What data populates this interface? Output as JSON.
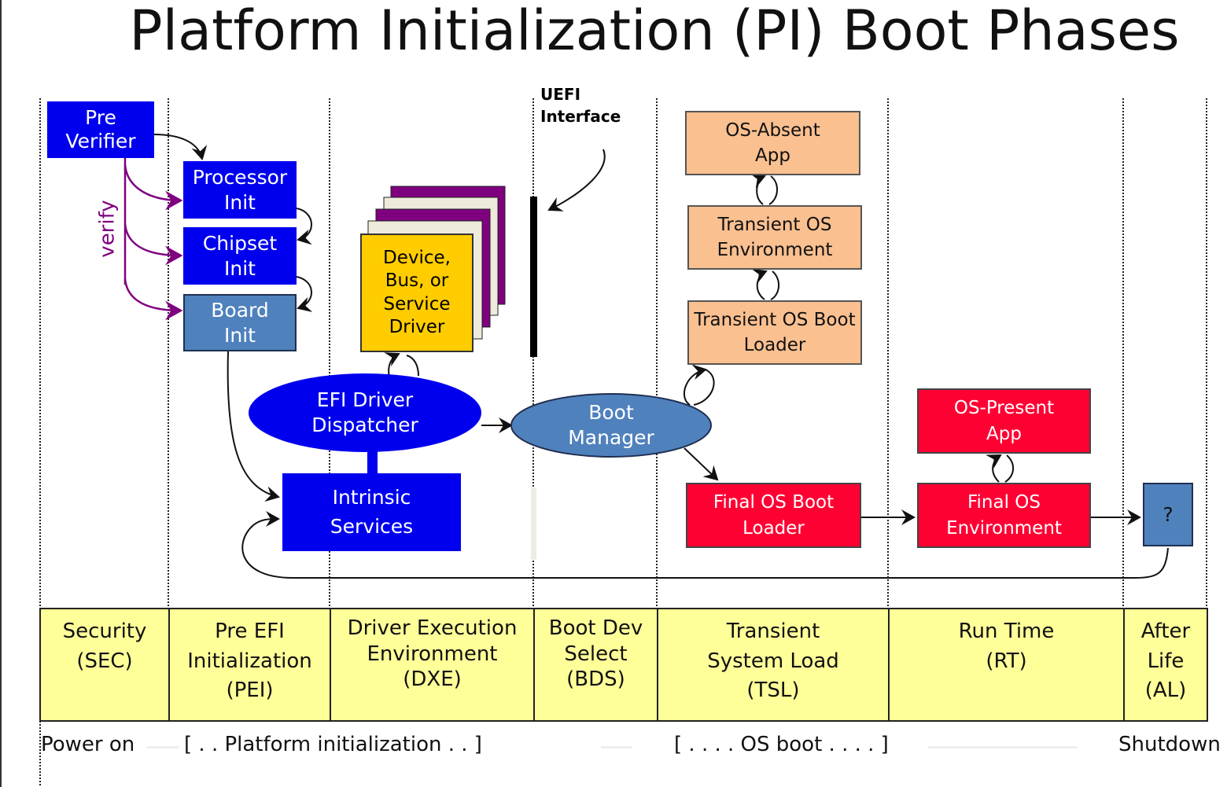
{
  "title": "Platform Initialization (PI) Boot Phases",
  "colors": {
    "intel_blue": "#0000ee",
    "steel_blue": "#4f81bd",
    "orange": "#fac090",
    "red": "#ff0033",
    "driver_yellow": "#ffcc00",
    "phase_band": "#ffff99",
    "verify_purple": "#7f007f"
  },
  "labels": {
    "uefi_interface": "UEFI\nInterface",
    "verify": "verify"
  },
  "boxes": {
    "pre_verifier": "Pre\nVerifier",
    "processor_init": "Processor\nInit",
    "chipset_init": "Chipset\nInit",
    "board_init": "Board\nInit",
    "driver": "Device,\nBus, or\nService\nDriver",
    "efi_dispatcher": "EFI Driver\nDispatcher",
    "intrinsic_services": "Intrinsic\nServices",
    "boot_manager": "Boot\nManager",
    "os_absent_app": "OS-Absent\nApp",
    "transient_os_env": "Transient OS\nEnvironment",
    "transient_os_loader": "Transient OS Boot\nLoader",
    "os_present_app": "OS-Present\nApp",
    "final_os_loader": "Final OS Boot\nLoader",
    "final_os_env": "Final OS\nEnvironment",
    "afterlife": "?"
  },
  "phases": [
    {
      "label": "Security\n(SEC)"
    },
    {
      "label": "Pre EFI\nInitialization\n(PEI)"
    },
    {
      "label": "Driver Execution\nEnvironment\n(DXE)"
    },
    {
      "label": "Boot Dev\nSelect\n(BDS)"
    },
    {
      "label": "Transient\nSystem Load\n(TSL)"
    },
    {
      "label": "Run Time\n(RT)"
    },
    {
      "label": "After\nLife\n(AL)"
    }
  ],
  "footer": {
    "power_on": "Power on",
    "platform_init": "[ . . Platform initialization . . ]",
    "os_boot": "[ . . . . OS boot . . . . ]",
    "shutdown": "Shutdown"
  }
}
